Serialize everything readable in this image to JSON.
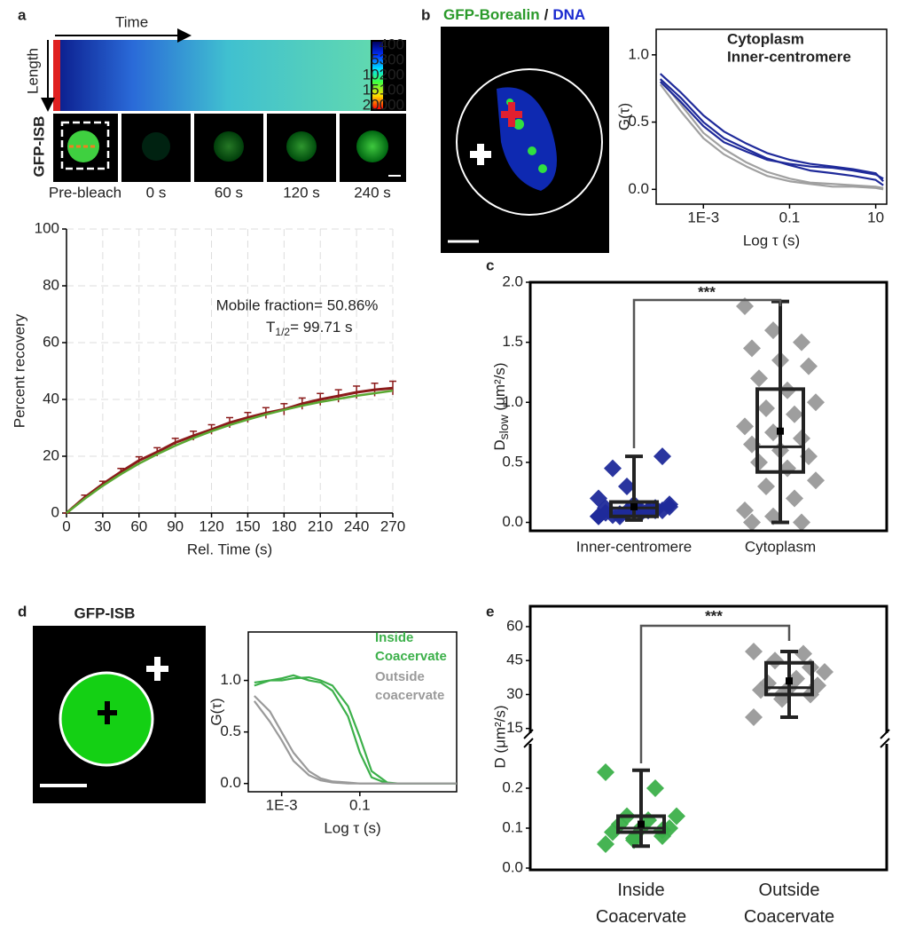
{
  "panel_labels": [
    "a",
    "b",
    "c",
    "d",
    "e"
  ],
  "panel_a": {
    "time": "Time",
    "length": "Length",
    "colorbar_ticks": [
      400,
      5300,
      10200,
      15100,
      20000
    ],
    "row_label": "GFP-ISB",
    "frames": [
      "Pre-bleach",
      "0 s",
      "60 s",
      "120 s",
      "240 s"
    ]
  },
  "panel_b": {
    "stain": "GFP-Borealin",
    "separator": "/",
    "counterstain": "DNA"
  },
  "panel_d": {
    "title": "GFP-ISB"
  },
  "chart_data": [
    {
      "type": "line",
      "xlabel": "Rel. Time (s)",
      "ylabel": "Percent recovery",
      "annotations": [
        "Mobile fraction= 50.86%",
        "T",
        "1/2",
        "= 99.71 s"
      ],
      "x": [
        0,
        15,
        30,
        45,
        60,
        75,
        90,
        105,
        120,
        135,
        150,
        165,
        180,
        195,
        210,
        225,
        240,
        255,
        270
      ],
      "series": [
        {
          "color": "#8b1a1a",
          "values": [
            0,
            5.5,
            10.2,
            14.5,
            18.5,
            21.5,
            24.8,
            27.2,
            29.4,
            31.8,
            33.6,
            35.2,
            36.5,
            38.5,
            40,
            41.2,
            42.5,
            43.4,
            44
          ],
          "errors": [
            0,
            0.8,
            1,
            1.2,
            1.3,
            1.5,
            1.5,
            1.6,
            1.7,
            1.8,
            1.8,
            1.9,
            2,
            2,
            2.1,
            2.2,
            2.2,
            2.3,
            2.4
          ]
        },
        {
          "color": "#5aa832",
          "values": [
            0,
            5,
            9.6,
            13.7,
            17.4,
            20.7,
            23.7,
            26.4,
            28.8,
            31,
            32.9,
            34.7,
            36.3,
            37.8,
            39.1,
            40.2,
            41.3,
            42.2,
            43.1
          ]
        }
      ],
      "xlim": [
        0,
        270
      ],
      "xticks": [
        0,
        30,
        60,
        90,
        120,
        150,
        180,
        210,
        240,
        270
      ],
      "ylim": [
        0,
        100
      ],
      "yticks": [
        0,
        20,
        40,
        60,
        80,
        100
      ],
      "grid": true
    },
    {
      "type": "line",
      "xlabel": "Log τ (s)",
      "ylabel": "G(τ)",
      "xlog": true,
      "x": [
        0.0001,
        0.0003,
        0.001,
        0.003,
        0.01,
        0.03,
        0.1,
        0.3,
        1,
        3,
        10,
        15
      ],
      "series": [
        {
          "name": "Cytoplasm",
          "color": "#a0a0a0",
          "curves": [
            [
              0.82,
              0.63,
              0.42,
              0.3,
              0.2,
              0.13,
              0.08,
              0.05,
              0.04,
              0.03,
              0.02,
              0.01
            ],
            [
              0.78,
              0.58,
              0.38,
              0.26,
              0.17,
              0.1,
              0.06,
              0.04,
              0.02,
              0.02,
              0.01,
              0
            ]
          ]
        },
        {
          "name": "Inner-centromere",
          "color": "#1f2a9a",
          "curves": [
            [
              0.86,
              0.72,
              0.55,
              0.43,
              0.34,
              0.27,
              0.22,
              0.19,
              0.17,
              0.15,
              0.12,
              0.06
            ],
            [
              0.82,
              0.68,
              0.5,
              0.38,
              0.3,
              0.23,
              0.18,
              0.14,
              0.12,
              0.1,
              0.07,
              0.03
            ],
            [
              0.8,
              0.65,
              0.47,
              0.35,
              0.28,
              0.22,
              0.19,
              0.17,
              0.16,
              0.14,
              0.11,
              0.08
            ]
          ]
        }
      ],
      "xlim": [
        8e-05,
        18
      ],
      "xticks": [
        {
          "value": 0.001,
          "label": "1E-3"
        },
        0.1,
        10
      ],
      "ylim": [
        -0.11,
        1.19
      ],
      "yticks": [
        {
          "value": 0,
          "label": "0.0"
        },
        0.5,
        {
          "value": 1,
          "label": "1.0"
        }
      ]
    },
    {
      "type": "box",
      "ylabel": [
        "D",
        "slow",
        " (μm²/s)"
      ],
      "annotation": "***",
      "categories": [
        "Inner-centromere",
        "Cytoplasm"
      ],
      "boxes": [
        {
          "color": "#1f2a9a",
          "min": 0.02,
          "q1": 0.05,
          "median": 0.12,
          "q3": 0.17,
          "max": 0.55,
          "mean": 0.13,
          "points": [
            0.05,
            0.08,
            0.1,
            0.12,
            0.15,
            0.1,
            0.06,
            0.08,
            0.13,
            0.05,
            0.1,
            0.2,
            0.3,
            0.12,
            0.08,
            0.1,
            0.55,
            0.45,
            0.1,
            0.15,
            0.07,
            0.1,
            0.05,
            0.09
          ]
        },
        {
          "color": "#999999",
          "min": 0,
          "q1": 0.42,
          "median": 0.63,
          "q3": 1.11,
          "max": 1.84,
          "mean": 0.76,
          "points": [
            1.8,
            1.6,
            1.5,
            1.45,
            1.35,
            1.3,
            1.2,
            1.1,
            1,
            0.95,
            0.9,
            0.8,
            0.75,
            0.7,
            0.65,
            0.6,
            0.55,
            0.5,
            0.45,
            0.35,
            0.3,
            0.2,
            0.1,
            0.05,
            0,
            0
          ]
        }
      ],
      "ylim": [
        -0.07,
        2
      ],
      "yticks": [
        {
          "value": 0,
          "label": "0.0"
        },
        0.5,
        {
          "value": 1,
          "label": "1.0"
        },
        1.5,
        {
          "value": 2,
          "label": "2.0"
        }
      ]
    },
    {
      "type": "line",
      "xlabel": "Log τ (s)",
      "ylabel": "G(τ)",
      "xlog": true,
      "x": [
        0.0002,
        0.0005,
        0.001,
        0.002,
        0.005,
        0.01,
        0.02,
        0.05,
        0.1,
        0.2,
        0.5,
        1,
        5,
        30
      ],
      "series": [
        {
          "name": "Inside Coacervate",
          "color": "#3cb04a",
          "curves": [
            [
              0.95,
              1,
              1,
              1.02,
              1.03,
              1,
              0.95,
              0.75,
              0.45,
              0.12,
              0.01,
              0,
              0,
              0
            ],
            [
              0.98,
              1,
              1.02,
              1.05,
              1,
              0.98,
              0.9,
              0.65,
              0.3,
              0.06,
              0,
              0,
              0,
              0
            ]
          ]
        },
        {
          "name": "Outside coacervate",
          "color": "#9a9a9a",
          "curves": [
            [
              0.85,
              0.7,
              0.5,
              0.3,
              0.12,
              0.05,
              0.02,
              0.01,
              0,
              0,
              0,
              0,
              0,
              0
            ],
            [
              0.8,
              0.6,
              0.42,
              0.22,
              0.08,
              0.03,
              0.01,
              0,
              0,
              0,
              0,
              0,
              0,
              0
            ]
          ]
        }
      ],
      "xlim": [
        0.00014,
        30
      ],
      "xticks": [
        {
          "value": 0.001,
          "label": "1E-3"
        },
        0.1
      ],
      "ylim": [
        -0.08,
        1.47
      ],
      "yticks": [
        {
          "value": 0,
          "label": "0.0"
        },
        0.5,
        {
          "value": 1,
          "label": "1.0"
        }
      ]
    },
    {
      "type": "broken-box",
      "ylabel": "D (μm²/s)",
      "annotation": "***",
      "categories": [
        "Inside Coacervate",
        "Outside Coacervate"
      ],
      "boxes": [
        {
          "color": "#3cb04a",
          "min": 0.055,
          "q1": 0.09,
          "median": 0.1,
          "q3": 0.13,
          "max": 0.245,
          "mean": 0.11,
          "points": [
            0.06,
            0.07,
            0.08,
            0.09,
            0.1,
            0.1,
            0.11,
            0.12,
            0.13,
            0.13,
            0.2,
            0.24,
            0.075,
            0.095
          ]
        },
        {
          "color": "#999999",
          "min": 20,
          "q1": 30,
          "median": 33,
          "q3": 44,
          "max": 49,
          "mean": 36,
          "points": [
            20,
            28,
            30,
            32,
            33,
            34,
            35,
            37,
            40,
            45,
            48,
            49,
            30,
            42
          ]
        }
      ],
      "ylim_lower": [
        0,
        0.32
      ],
      "yticks_lower": [
        {
          "value": 0,
          "label": "0.0"
        },
        0.1,
        0.2
      ],
      "ylim_upper": [
        9,
        69
      ],
      "yticks_upper": [
        15,
        30,
        45,
        60
      ]
    }
  ]
}
